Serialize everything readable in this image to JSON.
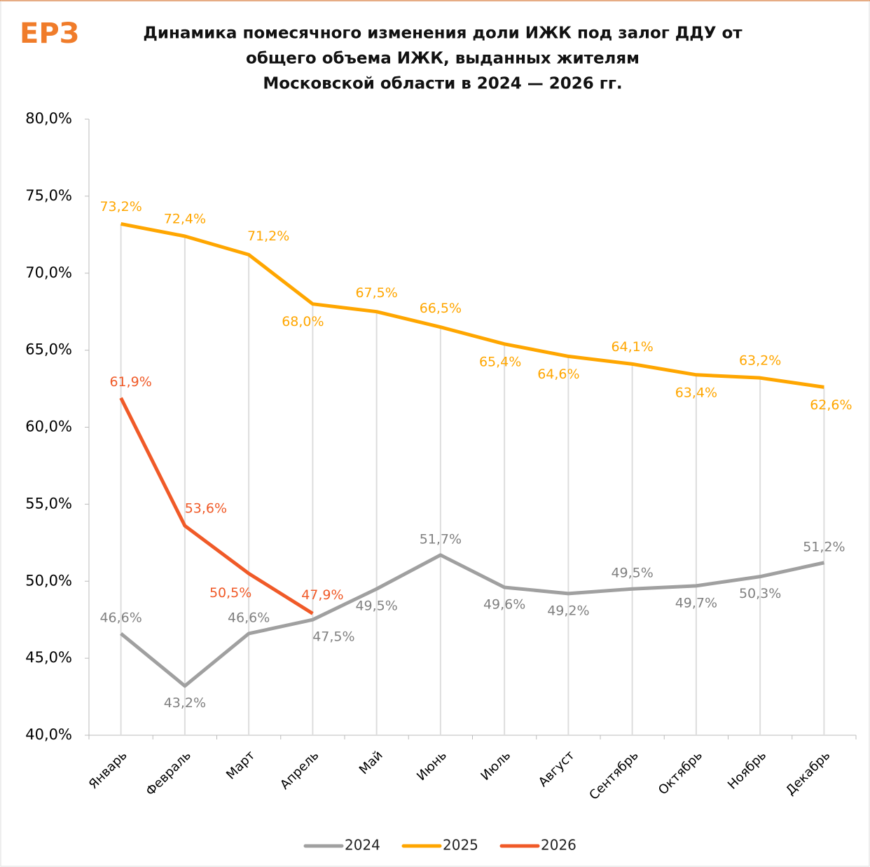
{
  "logo": "ЕРЗ",
  "chart_data": {
    "type": "line",
    "title": [
      "Динамика помесячного изменения доли ИЖК под залог ДДУ от",
      "общего объема ИЖК, выданных жителям",
      "Московской области в 2024 — 2026 гг."
    ],
    "categories": [
      "Январь",
      "Февраль",
      "Март",
      "Апрель",
      "Май",
      "Июнь",
      "Июль",
      "Август",
      "Сентябрь",
      "Октябрь",
      "Ноябрь",
      "Декабрь"
    ],
    "series": [
      {
        "name": "2024",
        "color": "#a0a0a0",
        "values": [
          46.6,
          43.2,
          46.6,
          47.5,
          49.5,
          51.7,
          49.6,
          49.2,
          49.5,
          49.7,
          50.3,
          51.2
        ],
        "value_labels": [
          "46,6%",
          "43,2%",
          "46,6%",
          "47,5%",
          "49,5%",
          "51,7%",
          "49,6%",
          "49,2%",
          "49,5%",
          "49,7%",
          "50,3%",
          "51,2%"
        ]
      },
      {
        "name": "2025",
        "color": "#ffa600",
        "values": [
          73.2,
          72.4,
          71.2,
          68.0,
          67.5,
          66.5,
          65.4,
          64.6,
          64.1,
          63.4,
          63.2,
          62.6
        ],
        "value_labels": [
          "73,2%",
          "72,4%",
          "71,2%",
          "68,0%",
          "67,5%",
          "66,5%",
          "65,4%",
          "64,6%",
          "64,1%",
          "63,4%",
          "63,2%",
          "62,6%"
        ]
      },
      {
        "name": "2026",
        "color": "#f05a28",
        "values": [
          61.9,
          53.6,
          50.5,
          47.9,
          null,
          null,
          null,
          null,
          null,
          null,
          null,
          null
        ],
        "value_labels": [
          "61,9%",
          "53,6%",
          "50,5%",
          "47,9%",
          null,
          null,
          null,
          null,
          null,
          null,
          null,
          null
        ]
      }
    ],
    "ylim": [
      40,
      80
    ],
    "yticks": [
      {
        "value": 40,
        "label": "40,0%"
      },
      {
        "value": 45,
        "label": "45,0%"
      },
      {
        "value": 50,
        "label": "50,0%"
      },
      {
        "value": 55,
        "label": "55,0%"
      },
      {
        "value": 60,
        "label": "60,0%"
      },
      {
        "value": 65,
        "label": "65,0%"
      },
      {
        "value": 70,
        "label": "70,0%"
      },
      {
        "value": 75,
        "label": "75,0%"
      },
      {
        "value": 80,
        "label": "80,0%"
      }
    ],
    "legend": "bottom"
  }
}
